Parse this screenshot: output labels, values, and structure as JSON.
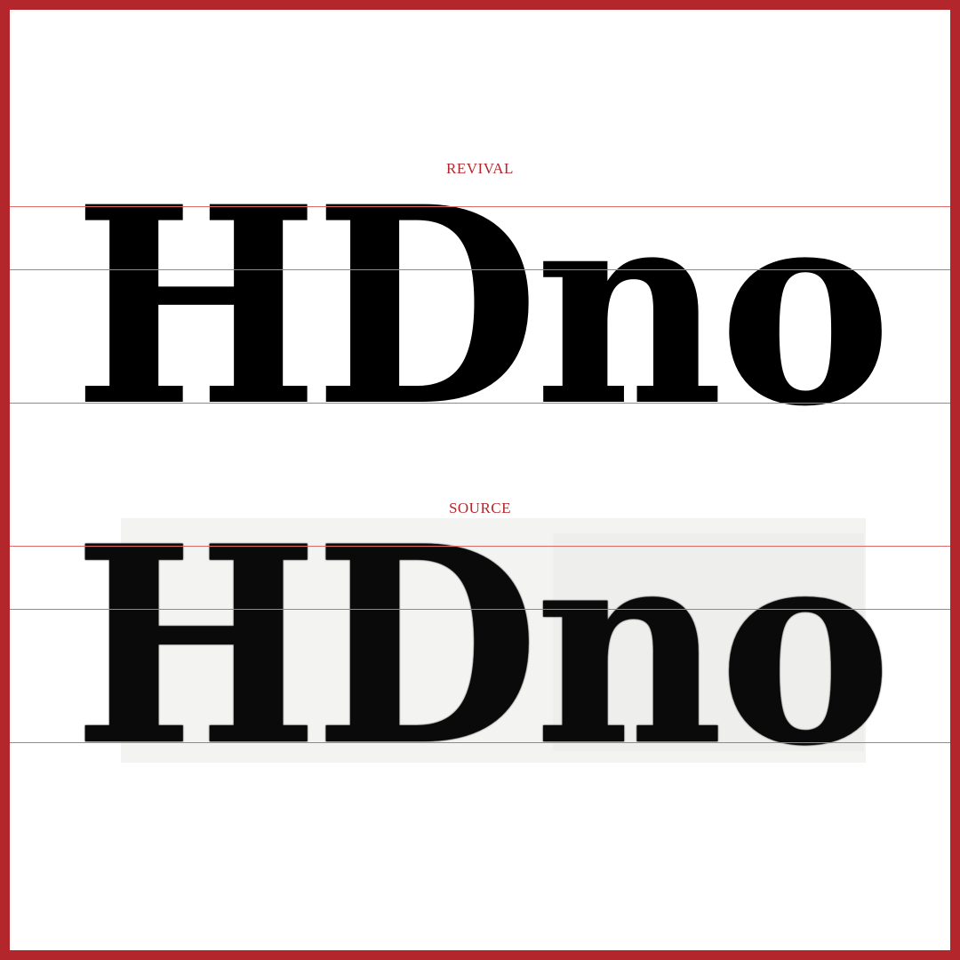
{
  "revival": {
    "label": "REVIVAL",
    "specimen_text": "HDno"
  },
  "source": {
    "label": "SOURCE",
    "specimen_text": "HDno"
  },
  "colors": {
    "frame": "#b3262b",
    "label": "#b3262b",
    "guide_lines": "#d86a6a",
    "glyphs": "#000000",
    "background": "#ffffff"
  }
}
